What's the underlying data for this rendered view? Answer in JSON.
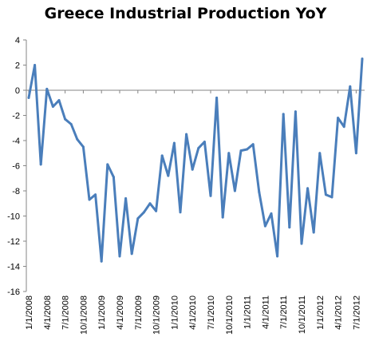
{
  "chart_data": {
    "type": "line",
    "title": "Greece Industrial Production YoY",
    "xlabel": "",
    "ylabel": "",
    "ylim": [
      -16,
      4
    ],
    "yticks": [
      4,
      2,
      0,
      -2,
      -4,
      -6,
      -8,
      -10,
      -12,
      -14,
      -16
    ],
    "xtick_labels": [
      "1/1/2008",
      "4/1/2008",
      "7/1/2008",
      "10/1/2008",
      "1/1/2009",
      "4/1/2009",
      "7/1/2009",
      "10/1/2009",
      "1/1/2010",
      "4/1/2010",
      "7/1/2010",
      "10/1/2010",
      "1/1/2011",
      "4/1/2011",
      "7/1/2011",
      "10/1/2011",
      "1/1/2012",
      "4/1/2012",
      "7/1/2012"
    ],
    "grid": false,
    "legend": "none",
    "series_color": "#4A7EBB",
    "x": [
      "1/1/2008",
      "2/1/2008",
      "3/1/2008",
      "4/1/2008",
      "5/1/2008",
      "6/1/2008",
      "7/1/2008",
      "8/1/2008",
      "9/1/2008",
      "10/1/2008",
      "11/1/2008",
      "12/1/2008",
      "1/1/2009",
      "2/1/2009",
      "3/1/2009",
      "4/1/2009",
      "5/1/2009",
      "6/1/2009",
      "7/1/2009",
      "8/1/2009",
      "9/1/2009",
      "10/1/2009",
      "11/1/2009",
      "12/1/2009",
      "1/1/2010",
      "2/1/2010",
      "3/1/2010",
      "4/1/2010",
      "5/1/2010",
      "6/1/2010",
      "7/1/2010",
      "8/1/2010",
      "9/1/2010",
      "10/1/2010",
      "11/1/2010",
      "12/1/2010",
      "1/1/2011",
      "2/1/2011",
      "3/1/2011",
      "4/1/2011",
      "5/1/2011",
      "6/1/2011",
      "7/1/2011",
      "8/1/2011",
      "9/1/2011",
      "10/1/2011",
      "11/1/2011",
      "12/1/2011",
      "1/1/2012",
      "2/1/2012",
      "3/1/2012",
      "4/1/2012",
      "5/1/2012",
      "6/1/2012",
      "7/1/2012",
      "8/1/2012"
    ],
    "values": [
      -0.6,
      2.0,
      -5.9,
      0.1,
      -1.3,
      -0.8,
      -2.3,
      -2.7,
      -3.9,
      -4.5,
      -8.7,
      -8.3,
      -13.6,
      -5.9,
      -6.9,
      -13.2,
      -8.6,
      -13.0,
      -10.2,
      -9.7,
      -9.0,
      -9.6,
      -5.2,
      -6.8,
      -4.2,
      -9.7,
      -3.5,
      -6.3,
      -4.6,
      -4.1,
      -8.4,
      -0.6,
      -10.1,
      -5.0,
      -8.0,
      -4.8,
      -4.7,
      -4.3,
      -8.1,
      -10.8,
      -9.8,
      -13.2,
      -1.9,
      -10.9,
      -1.7,
      -12.2,
      -7.8,
      -11.3,
      -5.0,
      -8.3,
      -8.5,
      -2.2,
      -2.9,
      0.3,
      -5.0,
      2.5
    ]
  }
}
